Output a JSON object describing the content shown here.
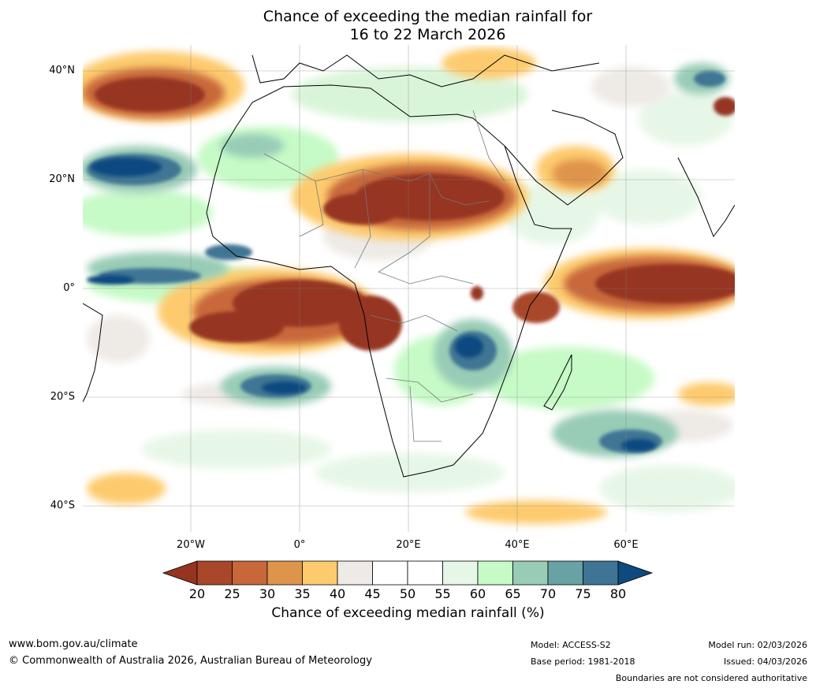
{
  "title": {
    "line1": "Chance of exceeding the median rainfall for",
    "line2": "16 to 22 March 2026"
  },
  "map": {
    "lat_labels": [
      "40°N",
      "20°N",
      "0°",
      "20°S",
      "40°S"
    ],
    "lon_labels": [
      "20°W",
      "0°",
      "20°E",
      "40°E",
      "60°E"
    ]
  },
  "colorbar": {
    "title": "Chance of exceeding median rainfall (%)",
    "ticks": [
      "20",
      "25",
      "30",
      "35",
      "40",
      "45",
      "50",
      "55",
      "60",
      "65",
      "70",
      "75",
      "80"
    ],
    "colors": [
      "#963420",
      "#a9472a",
      "#c8673a",
      "#df944b",
      "#fdcb6e",
      "#eeeae6",
      "#ffffff",
      "#ffffff",
      "#e7f7e7",
      "#c6fac6",
      "#98ccb6",
      "#68a2a4",
      "#3f7594",
      "#0e4a80"
    ]
  },
  "footer": {
    "url": "www.bom.gov.au/climate",
    "copyright": "© Commonwealth of Australia 2026, Australian Bureau of Meteorology",
    "model": "Model: ACCESS-S2",
    "base_period": "Base period: 1981-2018",
    "model_run": "Model run: 02/03/2026",
    "issued": "Issued: 04/03/2026",
    "disclaimer": "Boundaries are not considered authoritative"
  }
}
